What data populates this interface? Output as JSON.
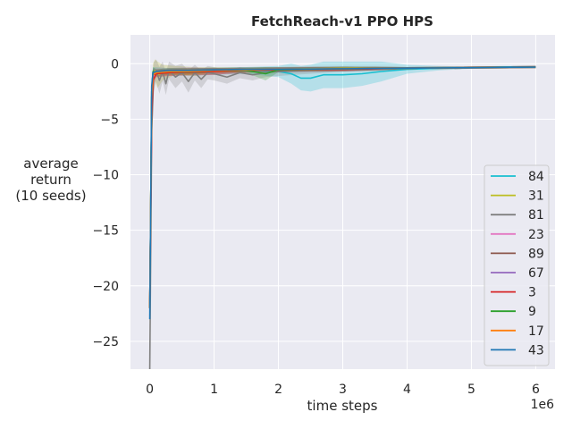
{
  "chart_data": {
    "type": "line",
    "title": "FetchReach-v1 PPO HPS",
    "xlabel": "time steps",
    "ylabel": [
      "average",
      "return",
      "(10 seeds)"
    ],
    "x_scale_label": "1e6",
    "xlim": [
      -0.3,
      6.3
    ],
    "ylim": [
      -27.5,
      2.6
    ],
    "xticks": [
      0,
      1,
      2,
      3,
      4,
      5,
      6
    ],
    "xtick_labels": [
      "0",
      "1",
      "2",
      "3",
      "4",
      "5",
      "6"
    ],
    "yticks": [
      0,
      -5,
      -10,
      -15,
      -20,
      -25
    ],
    "ytick_labels": [
      "0",
      "−5",
      "−10",
      "−15",
      "−20",
      "−25"
    ],
    "grid": true,
    "legend_position": "lower-right",
    "background_color": "#eaeaf2",
    "series": [
      {
        "name": "84",
        "color": "#17becf",
        "x": [
          0,
          0.03,
          0.05,
          0.1,
          0.3,
          0.6,
          1.0,
          1.5,
          2.0,
          2.2,
          2.35,
          2.5,
          2.7,
          3.0,
          3.3,
          3.6,
          4.0,
          4.5,
          5.0,
          5.5,
          6.0
        ],
        "y": [
          -22,
          -2.5,
          -0.8,
          -0.7,
          -0.7,
          -0.7,
          -0.7,
          -0.6,
          -0.7,
          -0.9,
          -1.3,
          -1.3,
          -1.0,
          -1.0,
          -0.9,
          -0.7,
          -0.5,
          -0.4,
          -0.35,
          -0.3,
          -0.3
        ],
        "band": [
          0.1,
          0.4,
          0.5,
          0.4,
          0.3,
          0.3,
          0.3,
          0.3,
          0.5,
          0.9,
          1.1,
          1.2,
          1.2,
          1.2,
          1.1,
          0.9,
          0.4,
          0.2,
          0.1,
          0.1,
          0.1
        ]
      },
      {
        "name": "31",
        "color": "#bcbd22",
        "x": [
          0,
          0.03,
          0.05,
          0.08,
          0.12,
          0.2,
          0.4,
          0.7,
          1.0,
          1.5,
          2.0,
          3.0,
          4.0,
          5.0,
          6.0
        ],
        "y": [
          -22,
          -3.5,
          -1.5,
          -0.6,
          -1.0,
          -0.8,
          -0.6,
          -0.7,
          -0.6,
          -0.5,
          -0.5,
          -0.4,
          -0.4,
          -0.35,
          -0.3
        ],
        "band": [
          0.1,
          1.5,
          1.5,
          1.0,
          1.2,
          0.7,
          0.4,
          0.4,
          0.3,
          0.2,
          0.2,
          0.1,
          0.1,
          0.1,
          0.1
        ]
      },
      {
        "name": "81",
        "color": "#7f7f7f",
        "x": [
          0,
          0.03,
          0.06,
          0.1,
          0.15,
          0.2,
          0.25,
          0.3,
          0.4,
          0.5,
          0.6,
          0.7,
          0.8,
          0.9,
          1.0,
          1.2,
          1.4,
          1.6,
          1.8,
          2.0,
          2.5,
          3.0,
          4.0,
          5.0,
          6.0
        ],
        "y": [
          -27.5,
          -6,
          -1.2,
          -0.6,
          -1.5,
          -0.7,
          -1.8,
          -0.6,
          -1.2,
          -0.8,
          -1.6,
          -0.8,
          -1.4,
          -0.8,
          -0.9,
          -1.2,
          -0.8,
          -1.0,
          -0.8,
          -0.7,
          -0.6,
          -0.5,
          -0.4,
          -0.35,
          -0.3
        ],
        "band": [
          0.1,
          2.0,
          1.3,
          1.0,
          1.2,
          0.9,
          1.0,
          0.8,
          1.0,
          0.8,
          1.0,
          0.7,
          0.8,
          0.6,
          0.6,
          0.6,
          0.5,
          0.5,
          0.4,
          0.4,
          0.3,
          0.2,
          0.1,
          0.1,
          0.1
        ]
      },
      {
        "name": "23",
        "color": "#e377c2",
        "x": [
          0,
          0.03,
          0.05,
          0.1,
          0.3,
          0.7,
          1.0,
          1.5,
          2.0,
          3.0,
          4.0,
          5.0,
          6.0
        ],
        "y": [
          -22,
          -4,
          -1.2,
          -0.8,
          -0.8,
          -0.7,
          -0.7,
          -0.6,
          -0.55,
          -0.5,
          -0.4,
          -0.35,
          -0.3
        ],
        "band": [
          0.1,
          1.0,
          0.6,
          0.3,
          0.3,
          0.3,
          0.3,
          0.2,
          0.2,
          0.2,
          0.1,
          0.1,
          0.1
        ]
      },
      {
        "name": "89",
        "color": "#8c564b",
        "x": [
          0,
          0.03,
          0.05,
          0.1,
          0.3,
          0.6,
          1.0,
          1.5,
          2.0,
          2.5,
          3.0,
          3.5,
          4.0,
          5.0,
          6.0
        ],
        "y": [
          -22,
          -3,
          -1.0,
          -0.9,
          -0.8,
          -0.8,
          -0.7,
          -0.6,
          -0.6,
          -0.5,
          -0.5,
          -0.45,
          -0.4,
          -0.35,
          -0.3
        ],
        "band": [
          0.1,
          0.8,
          0.5,
          0.3,
          0.3,
          0.3,
          0.3,
          0.2,
          0.2,
          0.2,
          0.2,
          0.2,
          0.1,
          0.1,
          0.1
        ]
      },
      {
        "name": "67",
        "color": "#9467bd",
        "x": [
          0,
          0.03,
          0.05,
          0.1,
          0.3,
          0.6,
          1.0,
          1.5,
          2.0,
          3.0,
          4.0,
          5.0,
          6.0
        ],
        "y": [
          -22,
          -3,
          -0.8,
          -0.7,
          -0.7,
          -0.6,
          -0.6,
          -0.55,
          -0.5,
          -0.45,
          -0.4,
          -0.35,
          -0.3
        ],
        "band": [
          0.1,
          0.8,
          0.4,
          0.3,
          0.3,
          0.3,
          0.2,
          0.2,
          0.2,
          0.2,
          0.1,
          0.1,
          0.1
        ]
      },
      {
        "name": "3",
        "color": "#d62728",
        "x": [
          0,
          0.03,
          0.05,
          0.1,
          0.3,
          0.6,
          1.0,
          1.5,
          2.0,
          3.0,
          4.0,
          5.0,
          6.0
        ],
        "y": [
          -22,
          -5,
          -1.5,
          -0.9,
          -0.8,
          -0.7,
          -0.7,
          -0.6,
          -0.55,
          -0.5,
          -0.4,
          -0.35,
          -0.3
        ],
        "band": [
          0.1,
          1.2,
          0.7,
          0.3,
          0.3,
          0.3,
          0.3,
          0.2,
          0.2,
          0.2,
          0.1,
          0.1,
          0.1
        ]
      },
      {
        "name": "9",
        "color": "#2ca02c",
        "x": [
          0,
          0.03,
          0.05,
          0.1,
          0.3,
          0.6,
          1.0,
          1.5,
          1.8,
          2.0,
          2.5,
          3.0,
          4.0,
          5.0,
          6.0
        ],
        "y": [
          -22,
          -2.5,
          -0.7,
          -0.8,
          -0.7,
          -0.7,
          -0.6,
          -0.6,
          -0.9,
          -0.55,
          -0.5,
          -0.45,
          -0.4,
          -0.35,
          -0.3
        ],
        "band": [
          0.1,
          0.8,
          0.4,
          0.3,
          0.3,
          0.3,
          0.2,
          0.2,
          0.6,
          0.2,
          0.2,
          0.2,
          0.1,
          0.1,
          0.1
        ]
      },
      {
        "name": "17",
        "color": "#ff7f0e",
        "x": [
          0,
          0.03,
          0.05,
          0.1,
          0.3,
          0.6,
          1.0,
          1.5,
          2.0,
          3.0,
          4.0,
          5.0,
          6.0
        ],
        "y": [
          -22,
          -3,
          -1.0,
          -0.8,
          -0.7,
          -0.7,
          -0.6,
          -0.55,
          -0.5,
          -0.45,
          -0.4,
          -0.35,
          -0.3
        ],
        "band": [
          0.1,
          0.8,
          0.5,
          0.3,
          0.3,
          0.3,
          0.2,
          0.2,
          0.2,
          0.2,
          0.1,
          0.1,
          0.1
        ]
      },
      {
        "name": "43",
        "color": "#1f77b4",
        "x": [
          0,
          0.03,
          0.05,
          0.1,
          0.3,
          0.6,
          1.0,
          1.5,
          2.0,
          3.0,
          4.0,
          5.0,
          6.0
        ],
        "y": [
          -23,
          -2,
          -0.8,
          -0.7,
          -0.6,
          -0.6,
          -0.55,
          -0.5,
          -0.5,
          -0.45,
          -0.4,
          -0.35,
          -0.3
        ],
        "band": [
          0.1,
          0.6,
          0.4,
          0.2,
          0.2,
          0.2,
          0.2,
          0.2,
          0.2,
          0.2,
          0.1,
          0.1,
          0.1
        ]
      }
    ]
  }
}
